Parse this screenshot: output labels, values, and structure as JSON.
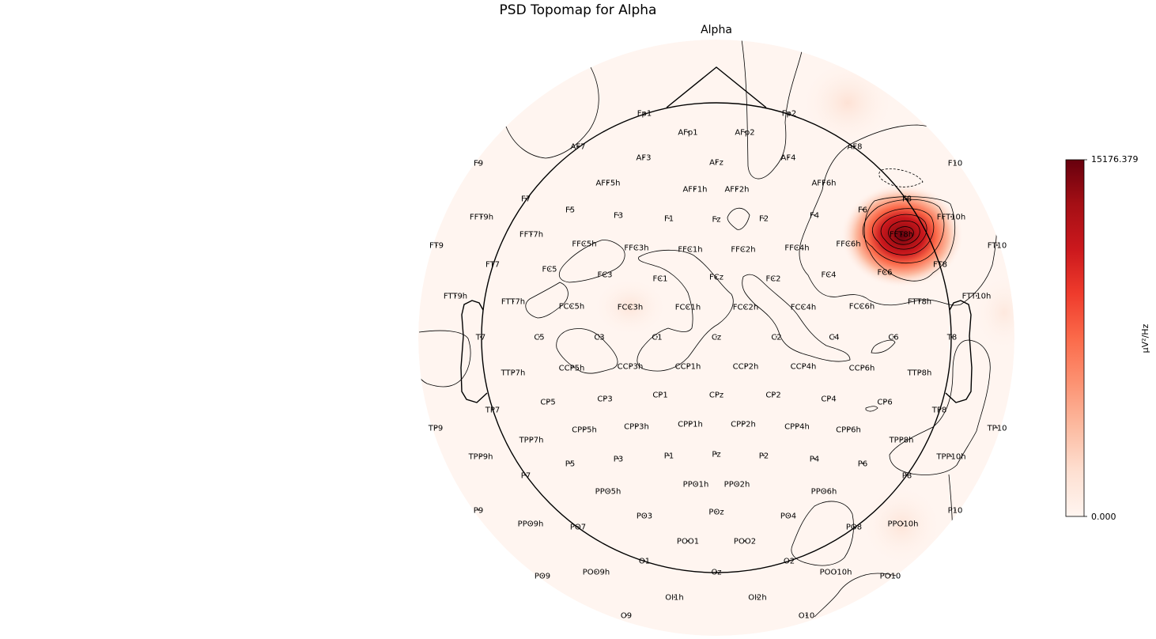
{
  "chart_data": {
    "type": "heatmap",
    "title": "PSD Topomap for Alpha",
    "subplot_title": "Alpha",
    "colorbar": {
      "label": "µV²/Hz",
      "min": 0.0,
      "max": 15176.379,
      "min_label": "0.000",
      "max_label": "15176.379",
      "colormap": "Reds",
      "colors": [
        "#fff5f0",
        "#fee0d2",
        "#fcbba1",
        "#fc9272",
        "#fb6a4a",
        "#ef3b2c",
        "#cb181d",
        "#a50f15",
        "#67000d"
      ]
    },
    "electrodes": [
      {
        "name": "Fp1",
        "value": 0
      },
      {
        "name": "Fp2",
        "value": 150
      },
      {
        "name": "AFp1",
        "value": 0
      },
      {
        "name": "AFp2",
        "value": 0
      },
      {
        "name": "AF7",
        "value": 0
      },
      {
        "name": "AF3",
        "value": 0
      },
      {
        "name": "AFz",
        "value": 0
      },
      {
        "name": "AF4",
        "value": 0
      },
      {
        "name": "AF8",
        "value": 400
      },
      {
        "name": "F9",
        "value": 0
      },
      {
        "name": "F10",
        "value": 0
      },
      {
        "name": "AFF5h",
        "value": 0
      },
      {
        "name": "AFF1h",
        "value": 0
      },
      {
        "name": "AFF2h",
        "value": 0
      },
      {
        "name": "AFF6h",
        "value": 150
      },
      {
        "name": "F7",
        "value": 0
      },
      {
        "name": "F5",
        "value": 0
      },
      {
        "name": "F3",
        "value": 0
      },
      {
        "name": "F1",
        "value": 0
      },
      {
        "name": "Fz",
        "value": 0
      },
      {
        "name": "F2",
        "value": 0
      },
      {
        "name": "F4",
        "value": 0
      },
      {
        "name": "F6",
        "value": 700
      },
      {
        "name": "F8",
        "value": 1500
      },
      {
        "name": "FFT9h",
        "value": 0
      },
      {
        "name": "FFT10h",
        "value": 900
      },
      {
        "name": "FFT7h",
        "value": 0
      },
      {
        "name": "FFC5h",
        "value": 0
      },
      {
        "name": "FFC3h",
        "value": 0
      },
      {
        "name": "FFC1h",
        "value": 0
      },
      {
        "name": "FFC2h",
        "value": 0
      },
      {
        "name": "FFC4h",
        "value": 0
      },
      {
        "name": "FFC6h",
        "value": 1200
      },
      {
        "name": "FFT8h",
        "value": 15176.379
      },
      {
        "name": "FT9",
        "value": 0
      },
      {
        "name": "FT10",
        "value": 0
      },
      {
        "name": "FT7",
        "value": 0
      },
      {
        "name": "FC5",
        "value": 0
      },
      {
        "name": "FC3",
        "value": 0
      },
      {
        "name": "FC1",
        "value": 0
      },
      {
        "name": "FCz",
        "value": 0
      },
      {
        "name": "FC2",
        "value": 0
      },
      {
        "name": "FC4",
        "value": 0
      },
      {
        "name": "FC6",
        "value": 900
      },
      {
        "name": "FT8",
        "value": 700
      },
      {
        "name": "FTT9h",
        "value": 0
      },
      {
        "name": "FTT10h",
        "value": 0
      },
      {
        "name": "FTT7h",
        "value": 0
      },
      {
        "name": "FCC5h",
        "value": 0
      },
      {
        "name": "FCC3h",
        "value": 450
      },
      {
        "name": "FCC1h",
        "value": 0
      },
      {
        "name": "FCC2h",
        "value": 0
      },
      {
        "name": "FCC4h",
        "value": 0
      },
      {
        "name": "FCC6h",
        "value": 0
      },
      {
        "name": "FTT8h",
        "value": 0
      },
      {
        "name": "T7",
        "value": 0
      },
      {
        "name": "C5",
        "value": 0
      },
      {
        "name": "C3",
        "value": 0
      },
      {
        "name": "C1",
        "value": 0
      },
      {
        "name": "Cz",
        "value": 0
      },
      {
        "name": "C2",
        "value": 0
      },
      {
        "name": "C4",
        "value": 0
      },
      {
        "name": "C6",
        "value": 0
      },
      {
        "name": "T8",
        "value": 0
      },
      {
        "name": "TTP7h",
        "value": 0
      },
      {
        "name": "CCP5h",
        "value": 0
      },
      {
        "name": "CCP3h",
        "value": 0
      },
      {
        "name": "CCP1h",
        "value": 0
      },
      {
        "name": "CCP2h",
        "value": 0
      },
      {
        "name": "CCP4h",
        "value": 0
      },
      {
        "name": "CCP6h",
        "value": 0
      },
      {
        "name": "TTP8h",
        "value": 0
      },
      {
        "name": "CP5",
        "value": 0
      },
      {
        "name": "CP3",
        "value": 0
      },
      {
        "name": "CP1",
        "value": 0
      },
      {
        "name": "CPz",
        "value": 0
      },
      {
        "name": "CP2",
        "value": 0
      },
      {
        "name": "CP4",
        "value": 0
      },
      {
        "name": "CP6",
        "value": 0
      },
      {
        "name": "TP7",
        "value": 0
      },
      {
        "name": "TP8",
        "value": 0
      },
      {
        "name": "TP9",
        "value": 0
      },
      {
        "name": "TP10",
        "value": 0
      },
      {
        "name": "CPP5h",
        "value": 0
      },
      {
        "name": "CPP3h",
        "value": 0
      },
      {
        "name": "CPP1h",
        "value": 0
      },
      {
        "name": "CPP2h",
        "value": 0
      },
      {
        "name": "CPP4h",
        "value": 0
      },
      {
        "name": "CPP6h",
        "value": 0
      },
      {
        "name": "TPP7h",
        "value": 0
      },
      {
        "name": "TPP8h",
        "value": 0
      },
      {
        "name": "TPP9h",
        "value": 0
      },
      {
        "name": "TPP10h",
        "value": 0
      },
      {
        "name": "P7",
        "value": 0
      },
      {
        "name": "P5",
        "value": 0
      },
      {
        "name": "P3",
        "value": 0
      },
      {
        "name": "P1",
        "value": 0
      },
      {
        "name": "Pz",
        "value": 0
      },
      {
        "name": "P2",
        "value": 0
      },
      {
        "name": "P4",
        "value": 0
      },
      {
        "name": "P6",
        "value": 0
      },
      {
        "name": "P8",
        "value": 150
      },
      {
        "name": "PPO1h",
        "value": 0
      },
      {
        "name": "PPO2h",
        "value": 0
      },
      {
        "name": "PPO5h",
        "value": 0
      },
      {
        "name": "PPO6h",
        "value": 0
      },
      {
        "name": "P9",
        "value": 0
      },
      {
        "name": "P10",
        "value": 0
      },
      {
        "name": "PPO9h",
        "value": 0
      },
      {
        "name": "PPO10h",
        "value": 450
      },
      {
        "name": "PO7",
        "value": 0
      },
      {
        "name": "PO3",
        "value": 0
      },
      {
        "name": "POz",
        "value": 0
      },
      {
        "name": "PO4",
        "value": 0
      },
      {
        "name": "PO8",
        "value": 300
      },
      {
        "name": "POO1",
        "value": 0
      },
      {
        "name": "POO2",
        "value": 0
      },
      {
        "name": "O1",
        "value": 0
      },
      {
        "name": "Oz",
        "value": 0
      },
      {
        "name": "O2",
        "value": 0
      },
      {
        "name": "POO9h",
        "value": 0
      },
      {
        "name": "POO10h",
        "value": 0
      },
      {
        "name": "PO9",
        "value": 0
      },
      {
        "name": "PO10",
        "value": 0
      },
      {
        "name": "OI1h",
        "value": 0
      },
      {
        "name": "OI2h",
        "value": 0
      },
      {
        "name": "O9",
        "value": 0
      },
      {
        "name": "O10",
        "value": 0
      }
    ]
  }
}
